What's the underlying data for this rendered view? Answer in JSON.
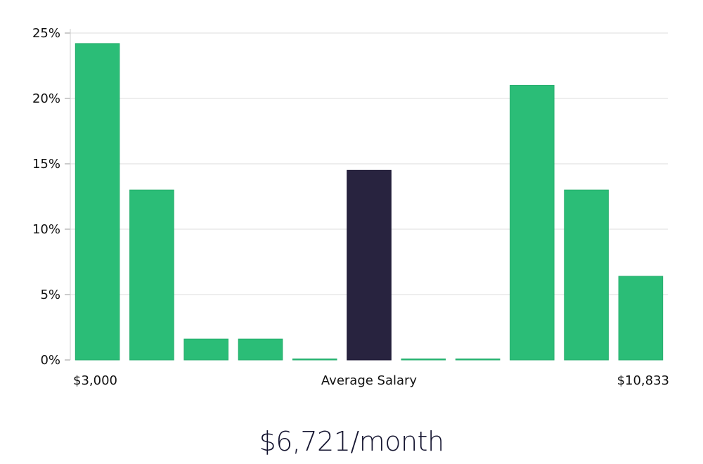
{
  "chart_data": {
    "type": "bar",
    "values": [
      24.2,
      13.0,
      1.6,
      1.6,
      0.0,
      14.5,
      0.0,
      0.0,
      21.0,
      13.0,
      6.4
    ],
    "highlight_index": 5,
    "ylim": [
      0,
      25
    ],
    "yticks": [
      "0%",
      "5%",
      "10%",
      "15%",
      "20%",
      "25%"
    ],
    "ytick_values": [
      0,
      5,
      10,
      15,
      20,
      25
    ],
    "x_labels": {
      "left": "$3,000",
      "center": "Average Salary",
      "right": "$10,833"
    },
    "grid": true,
    "colors": {
      "bar": "#2bbd77",
      "highlight": "#28233f",
      "grid": "#e3e3e3",
      "axis": "#cccccc"
    }
  },
  "summary": {
    "salary": "$6,721/month"
  }
}
